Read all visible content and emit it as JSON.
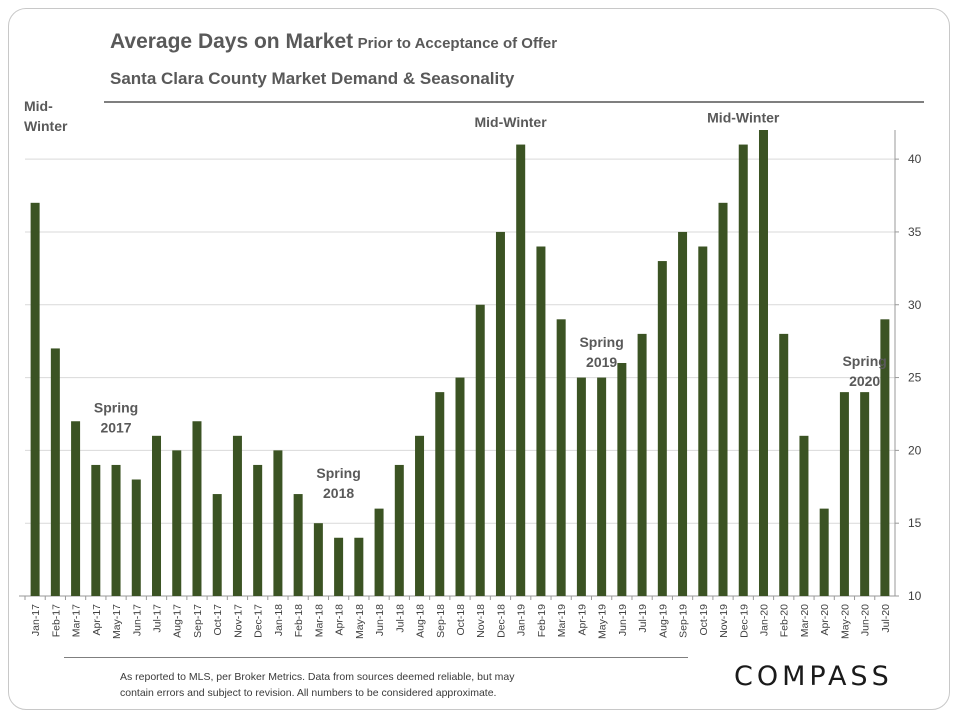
{
  "header": {
    "title_main": "Average Days on Market",
    "title_sub": "Prior to Acceptance of Offer",
    "subtitle": "Santa Clara County Market Demand & Seasonality"
  },
  "footer": {
    "note_line1": "As reported to MLS, per Broker Metrics. Data from sources deemed reliable, but may",
    "note_line2": "contain errors and subject to revision. All numbers to be considered approximate.",
    "logo": "COMPASS"
  },
  "colors": {
    "bar": "#3b5323",
    "grid": "#d9d9d9",
    "text": "#595959"
  },
  "chart_data": {
    "type": "bar",
    "categories": [
      "Jan-17",
      "Feb-17",
      "Mar-17",
      "Apr-17",
      "May-17",
      "Jun-17",
      "Jul-17",
      "Aug-17",
      "Sep-17",
      "Oct-17",
      "Nov-17",
      "Dec-17",
      "Jan-18",
      "Feb-18",
      "Mar-18",
      "Apr-18",
      "May-18",
      "Jun-18",
      "Jul-18",
      "Aug-18",
      "Sep-18",
      "Oct-18",
      "Nov-18",
      "Dec-18",
      "Jan-19",
      "Feb-19",
      "Mar-19",
      "Apr-19",
      "May-19",
      "Jun-19",
      "Jul-19",
      "Aug-19",
      "Sep-19",
      "Oct-19",
      "Nov-19",
      "Dec-19",
      "Jan-20",
      "Feb-20",
      "Mar-20",
      "Apr-20",
      "May-20",
      "Jun-20",
      "Jul-20"
    ],
    "values": [
      37,
      27,
      22,
      19,
      19,
      18,
      21,
      20,
      22,
      17,
      21,
      19,
      20,
      17,
      15,
      14,
      14,
      16,
      19,
      21,
      24,
      25,
      30,
      35,
      41,
      34,
      29,
      25,
      25,
      26,
      28,
      33,
      35,
      34,
      37,
      41,
      42,
      28,
      21,
      16,
      24,
      24,
      29
    ],
    "y_axis": {
      "position": "right",
      "ticks": [
        10,
        15,
        20,
        25,
        30,
        35,
        40
      ],
      "ylim": [
        10,
        42
      ]
    },
    "grid": true,
    "annotations": [
      {
        "lines": [
          "Mid-",
          "Winter"
        ],
        "index": 0,
        "align": "left",
        "value": 43.3
      },
      {
        "lines": [
          "Spring",
          "2017"
        ],
        "index": 4,
        "align": "center",
        "value": 22.6
      },
      {
        "lines": [
          "Spring",
          "2018"
        ],
        "index": 15,
        "align": "center",
        "value": 18.1
      },
      {
        "lines": [
          "Mid-Winter"
        ],
        "index": 23.5,
        "align": "center",
        "value": 42.2
      },
      {
        "lines": [
          "Spring",
          "2019"
        ],
        "index": 28,
        "align": "center",
        "value": 27.1
      },
      {
        "lines": [
          "Mid-Winter"
        ],
        "index": 35,
        "align": "center",
        "value": 42.5
      },
      {
        "lines": [
          "Spring",
          "2020"
        ],
        "index": 41,
        "align": "center",
        "value": 25.8
      }
    ]
  }
}
